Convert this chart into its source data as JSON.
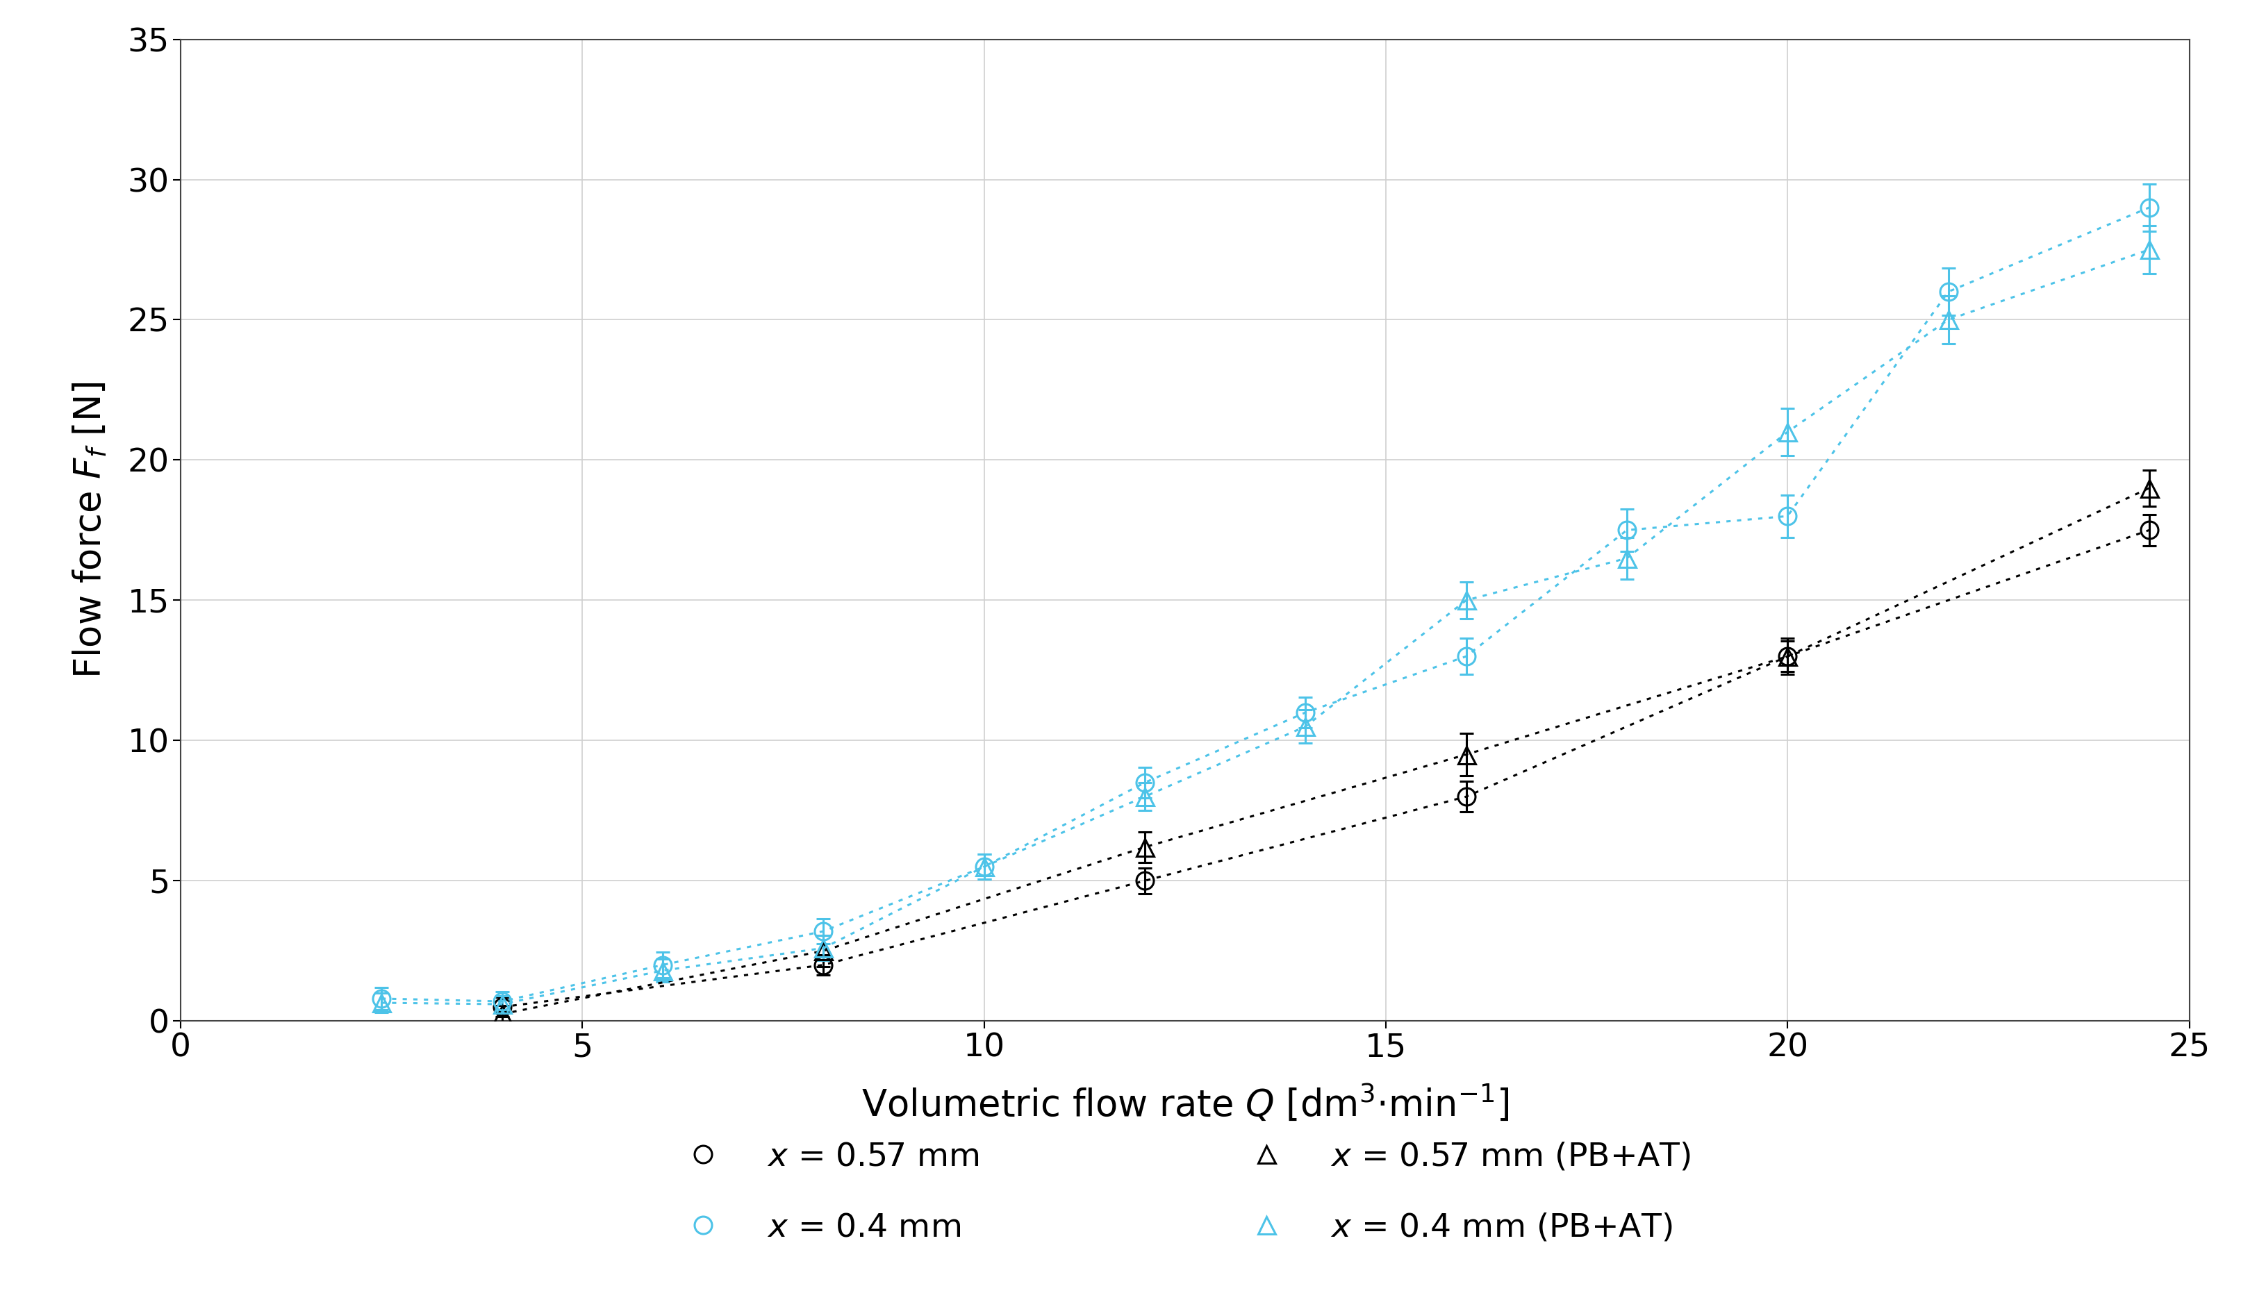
{
  "xlabel": "Volumetric flow rate $Q$ [dm$^3$·min$^{-1}$]",
  "ylabel": "Flow force $F_f$ [N]",
  "xlim": [
    2,
    25
  ],
  "ylim": [
    0,
    35
  ],
  "xticks": [
    0,
    5,
    10,
    15,
    20,
    25
  ],
  "yticks": [
    0,
    5,
    10,
    15,
    20,
    25,
    30,
    35
  ],
  "background_color": "#ffffff",
  "grid_color": "#d0d0d0",
  "series": {
    "black_circle": {
      "color": "#000000",
      "marker": "o",
      "x": [
        4.0,
        8.0,
        12.0,
        16.0,
        20.0,
        24.5
      ],
      "y": [
        0.5,
        2.0,
        5.0,
        8.0,
        13.0,
        17.5
      ],
      "yerr": [
        0.35,
        0.35,
        0.45,
        0.55,
        0.55,
        0.55
      ]
    },
    "black_triangle": {
      "color": "#000000",
      "marker": "^",
      "x": [
        4.0,
        8.0,
        12.0,
        16.0,
        20.0,
        24.5
      ],
      "y": [
        0.25,
        2.5,
        6.2,
        9.5,
        13.0,
        19.0
      ],
      "yerr": [
        0.3,
        0.55,
        0.55,
        0.75,
        0.65,
        0.65
      ]
    },
    "cyan_circle": {
      "color": "#4DC3E8",
      "marker": "o",
      "x": [
        2.5,
        4.0,
        6.0,
        8.0,
        10.0,
        12.0,
        14.0,
        16.0,
        18.0,
        20.0,
        22.0,
        24.5
      ],
      "y": [
        0.8,
        0.7,
        2.0,
        3.2,
        5.5,
        8.5,
        11.0,
        13.0,
        17.5,
        18.0,
        26.0,
        29.0
      ],
      "yerr": [
        0.4,
        0.35,
        0.45,
        0.45,
        0.45,
        0.55,
        0.55,
        0.65,
        0.75,
        0.75,
        0.85,
        0.85
      ]
    },
    "cyan_triangle": {
      "color": "#4DC3E8",
      "marker": "^",
      "x": [
        2.5,
        4.0,
        6.0,
        8.0,
        10.0,
        12.0,
        14.0,
        16.0,
        18.0,
        20.0,
        22.0,
        24.5
      ],
      "y": [
        0.65,
        0.6,
        1.8,
        2.6,
        5.5,
        8.0,
        10.5,
        15.0,
        16.5,
        21.0,
        25.0,
        27.5
      ],
      "yerr": [
        0.35,
        0.3,
        0.4,
        0.45,
        0.45,
        0.5,
        0.6,
        0.65,
        0.75,
        0.85,
        0.85,
        0.85
      ]
    }
  },
  "legend_labels": {
    "black_circle": "$x$ = 0.57 mm",
    "cyan_circle": "$x$ = 0.4 mm",
    "black_triangle": "$x$ = 0.57 mm (PB+AT)",
    "cyan_triangle": "$x$ = 0.4 mm (PB+AT)"
  },
  "fontsize_ticks": 34,
  "fontsize_labels": 38,
  "fontsize_legend": 34,
  "marker_size": 18,
  "marker_edge_width": 2.2,
  "line_width": 2.2,
  "capsize": 7,
  "cap_thick": 2.2,
  "error_line_width": 2.2
}
